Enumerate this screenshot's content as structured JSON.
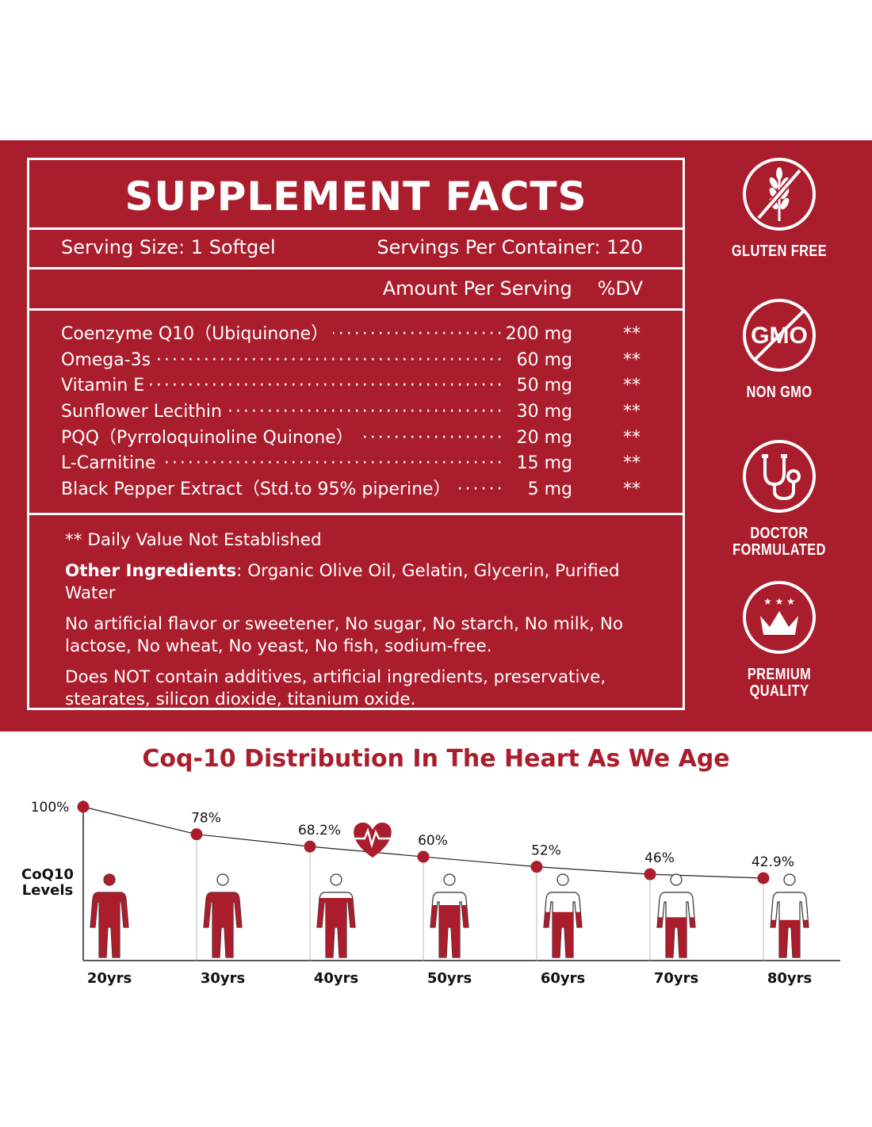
{
  "facts": {
    "title": "SUPPLEMENT FACTS",
    "serving_size": "Serving Size: 1 Softgel",
    "servings_per_container": "Servings Per Container: 120",
    "amount_header": "Amount Per Serving",
    "dv_header": "%DV",
    "ingredients": [
      {
        "name": "Coenzyme Q10（Ubiquinone）",
        "amount": "200 mg",
        "dv": "**"
      },
      {
        "name": "Omega-3s",
        "amount": "60 mg",
        "dv": "**"
      },
      {
        "name": "Vitamin E",
        "amount": "50 mg",
        "dv": "**"
      },
      {
        "name": "Sunflower Lecithin",
        "amount": "30 mg",
        "dv": "**"
      },
      {
        "name": "PQQ（Pyrroloquinoline Quinone）",
        "amount": "20 mg",
        "dv": "**"
      },
      {
        "name": "L-Carnitine",
        "amount": "15 mg",
        "dv": "**"
      },
      {
        "name": "Black Pepper Extract（Std.to 95% piperine）",
        "amount": "5 mg",
        "dv": "**"
      }
    ],
    "dv_note": "** Daily Value Not Established",
    "other_label": "Other Ingredients",
    "other_text": ": Organic Olive Oil, Gelatin, Glycerin, Purified Water",
    "free_from": "No artificial flavor or sweetener, No sugar, No starch, No milk, No lactose, No wheat, No yeast, No fish, sodium-free.",
    "not_contain": "Does NOT contain additives, artificial ingredients, preservative, stearates, silicon dioxide, titanium oxide."
  },
  "badges": [
    {
      "label": "GLUTEN FREE",
      "icon": "gluten-free-icon"
    },
    {
      "label": "NON GMO",
      "icon": "non-gmo-icon",
      "icon_text": "GMO"
    },
    {
      "label_lines": [
        "DOCTOR",
        "FORMULATED"
      ],
      "icon": "stethoscope-icon"
    },
    {
      "label_lines": [
        "PREMIUM",
        "QUALITY"
      ],
      "icon": "crown-icon"
    }
  ],
  "colors": {
    "brand_red": "#aa1d2c",
    "white": "#ffffff"
  },
  "chart_data": {
    "type": "line",
    "title": "Coq-10 Distribution In The Heart As We Age",
    "ylabel": "CoQ10 Levels",
    "categories": [
      "20yrs",
      "30yrs",
      "40yrs",
      "50yrs",
      "60yrs",
      "70yrs",
      "80yrs"
    ],
    "values": [
      100,
      78,
      68.2,
      60,
      52,
      46,
      42.9
    ],
    "value_labels": [
      "100%",
      "78%",
      "68.2%",
      "60%",
      "52%",
      "46%",
      "42.9%"
    ],
    "figure_fill": [
      1.0,
      0.78,
      0.682,
      0.6,
      0.52,
      0.46,
      0.429
    ]
  }
}
